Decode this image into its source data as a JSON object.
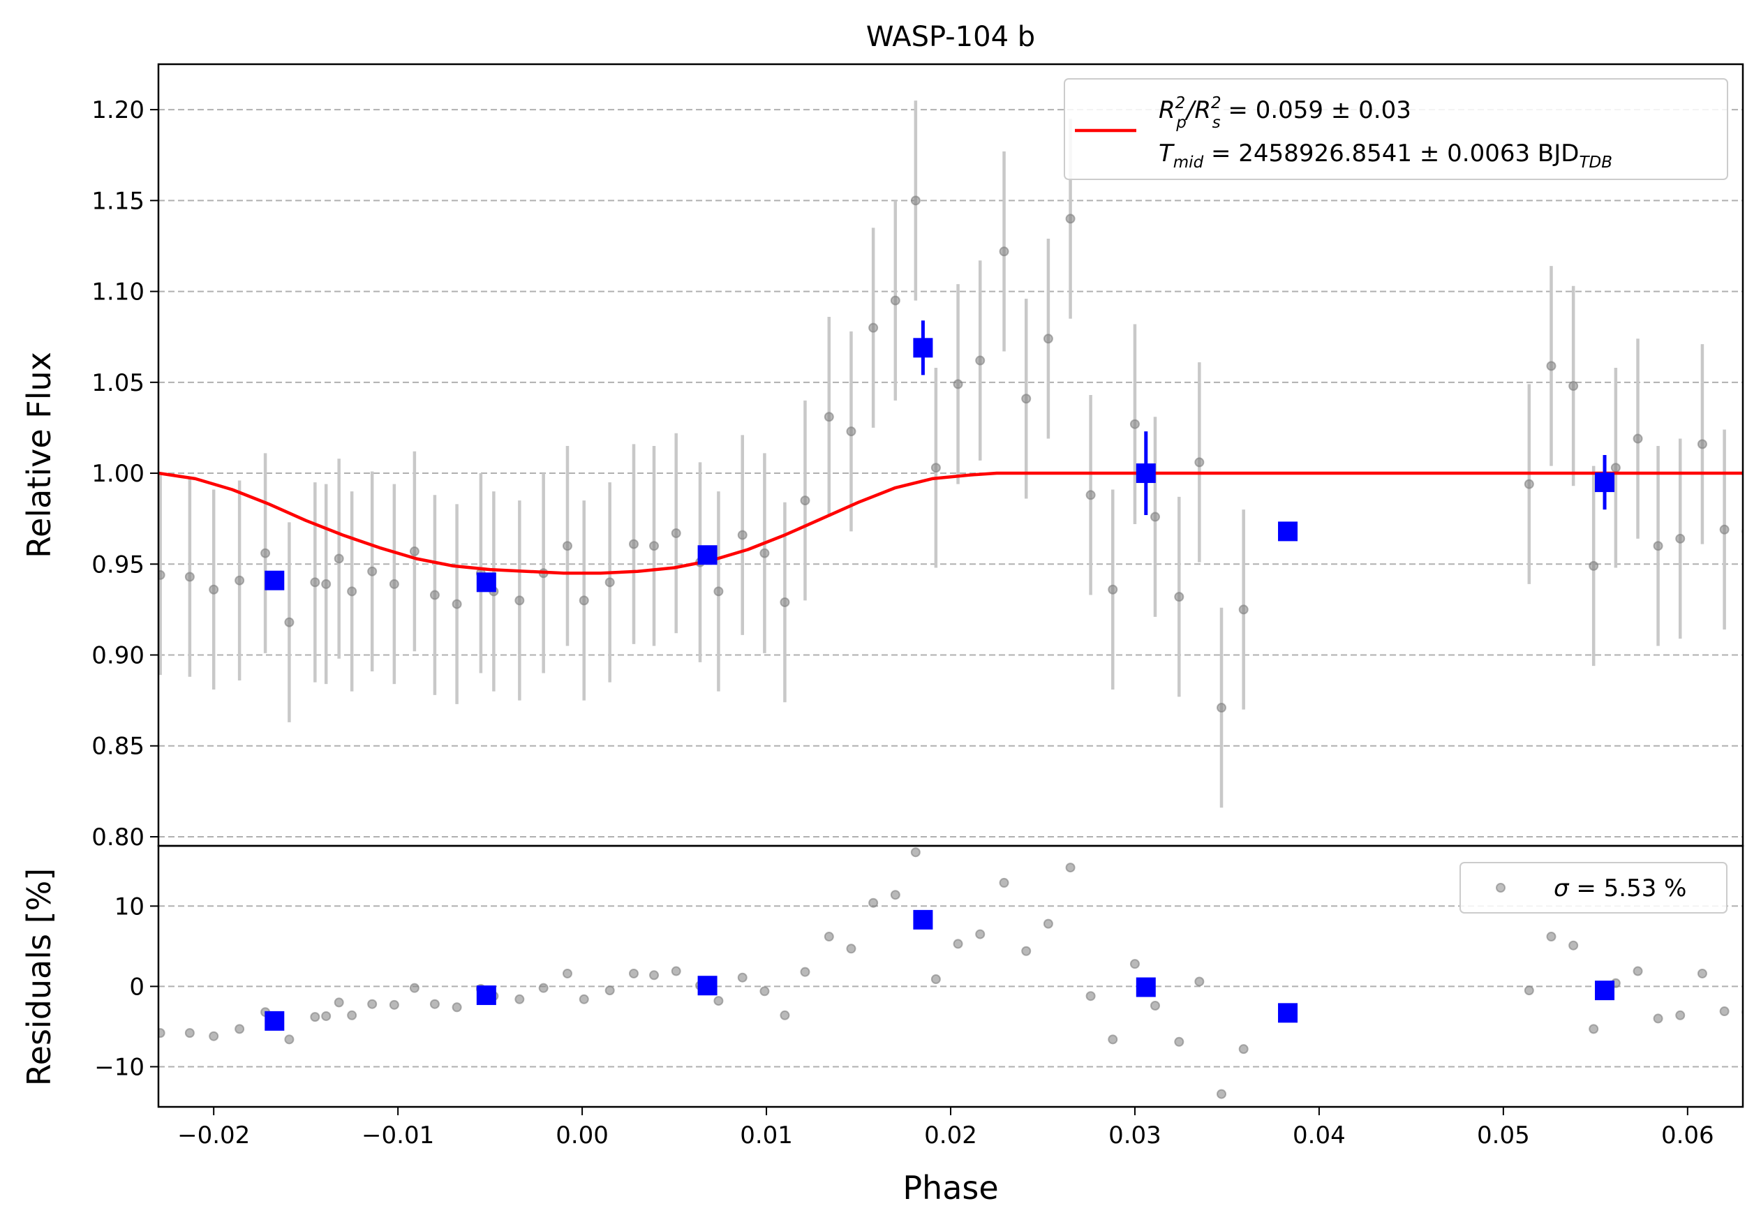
{
  "chart_data": [
    {
      "type": "scatter",
      "panel": "main",
      "title": "WASP-104 b",
      "xlabel": "",
      "ylabel": "Relative Flux",
      "xlim": [
        -0.023,
        0.063
      ],
      "ylim": [
        0.795,
        1.225
      ],
      "grid": "horizontal dashed",
      "yticks": [
        {
          "value": 0.8,
          "label": "0.80"
        },
        {
          "value": 0.85,
          "label": "0.85"
        },
        {
          "value": 0.9,
          "label": "0.90"
        },
        {
          "value": 0.95,
          "label": "0.95"
        },
        {
          "value": 1.0,
          "label": "1.00"
        },
        {
          "value": 1.05,
          "label": "1.05"
        },
        {
          "value": 1.1,
          "label": "1.10"
        },
        {
          "value": 1.15,
          "label": "1.15"
        },
        {
          "value": 1.2,
          "label": "1.20"
        }
      ],
      "legend": {
        "placement": "top-right",
        "line1": {
          "prefix": "R",
          "p_sub": "p",
          "p_sup": "2",
          "sep": "/R",
          "s_sub": "s",
          "s_sup": "2",
          "value": " = 0.059 ± 0.03"
        },
        "line2": {
          "prefix": "T",
          "sub": "mid",
          "value": " = 2458926.8541 ± 0.0063 BJD",
          "unit_sub": "TDB"
        }
      },
      "colors": {
        "model": "#ff0000",
        "binned": "#0000ff",
        "data": "#808080",
        "errorbar": "#c8c8c8",
        "grid": "#b0b0b0"
      },
      "series": [
        {
          "kind": "data",
          "x": [
            -0.0229,
            -0.0213,
            -0.02,
            -0.0186,
            -0.0172,
            -0.0159,
            -0.0145,
            -0.0139,
            -0.0132,
            -0.0125,
            -0.0114,
            -0.0102,
            -0.0091,
            -0.008,
            -0.0068,
            -0.0055,
            -0.0048,
            -0.0034,
            -0.0021,
            -0.0008,
            0.0001,
            0.0015,
            0.0028,
            0.0039,
            0.0051,
            0.0064,
            0.0074,
            0.0087,
            0.0099,
            0.011,
            0.0121,
            0.0134,
            0.0146,
            0.0158,
            0.017,
            0.0181,
            0.0192,
            0.0204,
            0.0216,
            0.0229,
            0.0241,
            0.0253,
            0.0265,
            0.0276,
            0.0288,
            0.03,
            0.0311,
            0.0324,
            0.0335,
            0.0347,
            0.0359,
            0.0514,
            0.0526,
            0.0538,
            0.0549,
            0.0561,
            0.0573,
            0.0584,
            0.0596,
            0.0608,
            0.062,
            0.0632
          ],
          "y": [
            0.944,
            0.943,
            0.936,
            0.941,
            0.956,
            0.918,
            0.94,
            0.939,
            0.953,
            0.935,
            0.946,
            0.939,
            0.957,
            0.933,
            0.928,
            0.945,
            0.935,
            0.93,
            0.945,
            0.96,
            0.93,
            0.94,
            0.961,
            0.96,
            0.967,
            0.951,
            0.935,
            0.966,
            0.956,
            0.929,
            0.985,
            1.031,
            1.023,
            1.08,
            1.095,
            1.15,
            1.003,
            1.049,
            1.062,
            1.122,
            1.041,
            1.074,
            1.14,
            0.988,
            0.936,
            1.027,
            0.976,
            0.932,
            1.006,
            0.871,
            0.925,
            0.994,
            1.059,
            1.048,
            0.949,
            1.003,
            1.019,
            0.96,
            0.964,
            1.016,
            0.969,
            0.968
          ],
          "err": [
            0.055,
            0.055,
            0.055,
            0.055,
            0.055,
            0.055,
            0.055,
            0.055,
            0.055,
            0.055,
            0.055,
            0.055,
            0.055,
            0.055,
            0.055,
            0.055,
            0.055,
            0.055,
            0.055,
            0.055,
            0.055,
            0.055,
            0.055,
            0.055,
            0.055,
            0.055,
            0.055,
            0.055,
            0.055,
            0.055,
            0.055,
            0.055,
            0.055,
            0.055,
            0.055,
            0.055,
            0.055,
            0.055,
            0.055,
            0.055,
            0.055,
            0.055,
            0.055,
            0.055,
            0.055,
            0.055,
            0.055,
            0.055,
            0.055,
            0.055,
            0.055,
            0.055,
            0.055,
            0.055,
            0.055,
            0.055,
            0.055,
            0.055,
            0.055,
            0.055,
            0.055,
            0.055
          ]
        },
        {
          "kind": "binned",
          "x": [
            -0.0167,
            -0.0052,
            0.0068,
            0.0185,
            0.0306,
            0.0383,
            0.0555
          ],
          "y": [
            0.941,
            0.94,
            0.955,
            1.069,
            1.0,
            0.968,
            0.995
          ],
          "err": [
            0.004,
            0.004,
            0.004,
            0.015,
            0.023,
            0.004,
            0.015
          ]
        },
        {
          "kind": "model",
          "x": [
            -0.023,
            -0.021,
            -0.019,
            -0.017,
            -0.015,
            -0.013,
            -0.011,
            -0.009,
            -0.007,
            -0.005,
            -0.003,
            -0.001,
            0.0,
            0.001,
            0.003,
            0.005,
            0.007,
            0.009,
            0.011,
            0.013,
            0.015,
            0.017,
            0.019,
            0.021,
            0.0225,
            0.023,
            0.063
          ],
          "y": [
            1.0,
            0.997,
            0.991,
            0.983,
            0.974,
            0.966,
            0.959,
            0.953,
            0.949,
            0.947,
            0.946,
            0.945,
            0.945,
            0.945,
            0.946,
            0.948,
            0.952,
            0.958,
            0.966,
            0.975,
            0.984,
            0.992,
            0.997,
            0.999,
            1.0,
            1.0,
            1.0
          ]
        }
      ]
    },
    {
      "type": "scatter",
      "panel": "residuals",
      "xlabel": "Phase",
      "ylabel": "Residuals [%]",
      "xlim": [
        -0.023,
        0.063
      ],
      "ylim": [
        -15,
        17.5
      ],
      "grid": "horizontal dashed",
      "xticks": [
        {
          "value": -0.02,
          "label": "−0.02"
        },
        {
          "value": -0.01,
          "label": "−0.01"
        },
        {
          "value": 0.0,
          "label": "0.00"
        },
        {
          "value": 0.01,
          "label": "0.01"
        },
        {
          "value": 0.02,
          "label": "0.02"
        },
        {
          "value": 0.03,
          "label": "0.03"
        },
        {
          "value": 0.04,
          "label": "0.04"
        },
        {
          "value": 0.05,
          "label": "0.05"
        },
        {
          "value": 0.06,
          "label": "0.06"
        }
      ],
      "yticks": [
        {
          "value": -10,
          "label": "−10"
        },
        {
          "value": 0,
          "label": "0"
        },
        {
          "value": 10,
          "label": "10"
        }
      ],
      "legend": {
        "placement": "top-right",
        "label_symbol": "σ",
        "label_value": " = 5.53 %"
      },
      "series": [
        {
          "kind": "data",
          "x": [
            -0.0229,
            -0.0213,
            -0.02,
            -0.0186,
            -0.0172,
            -0.0159,
            -0.0145,
            -0.0139,
            -0.0132,
            -0.0125,
            -0.0114,
            -0.0102,
            -0.0091,
            -0.008,
            -0.0068,
            -0.0055,
            -0.0048,
            -0.0034,
            -0.0021,
            -0.0008,
            0.0001,
            0.0015,
            0.0028,
            0.0039,
            0.0051,
            0.0064,
            0.0074,
            0.0087,
            0.0099,
            0.011,
            0.0121,
            0.0134,
            0.0146,
            0.0158,
            0.017,
            0.0181,
            0.0192,
            0.0204,
            0.0216,
            0.0229,
            0.0241,
            0.0253,
            0.0265,
            0.0276,
            0.0288,
            0.03,
            0.0311,
            0.0324,
            0.0335,
            0.0347,
            0.0359,
            0.0514,
            0.0526,
            0.0538,
            0.0549,
            0.0561,
            0.0573,
            0.0584,
            0.0596,
            0.0608,
            0.062,
            0.0632
          ],
          "y": [
            -5.8,
            -5.8,
            -6.2,
            -5.3,
            -3.2,
            -6.6,
            -3.8,
            -3.7,
            -2.0,
            -3.6,
            -2.2,
            -2.3,
            -0.2,
            -2.2,
            -2.6,
            -0.3,
            -1.2,
            -1.6,
            -0.2,
            1.6,
            -1.6,
            -0.5,
            1.6,
            1.4,
            1.9,
            0.1,
            -1.8,
            1.1,
            -0.6,
            -3.6,
            1.8,
            6.2,
            4.7,
            10.4,
            11.4,
            16.7,
            0.9,
            5.3,
            6.5,
            12.9,
            4.4,
            7.8,
            14.8,
            -1.2,
            -6.6,
            2.8,
            -2.4,
            -6.9,
            0.6,
            -13.4,
            -7.8,
            -0.5,
            6.2,
            5.1,
            -5.3,
            0.4,
            1.9,
            -4.0,
            -3.6,
            1.6,
            -3.1,
            -3.2
          ]
        },
        {
          "kind": "binned",
          "x": [
            -0.0167,
            -0.0052,
            0.0068,
            0.0185,
            0.0306,
            0.0383,
            0.0555
          ],
          "y": [
            -4.3,
            -1.1,
            0.1,
            8.3,
            -0.1,
            -3.3,
            -0.5
          ]
        }
      ]
    }
  ]
}
